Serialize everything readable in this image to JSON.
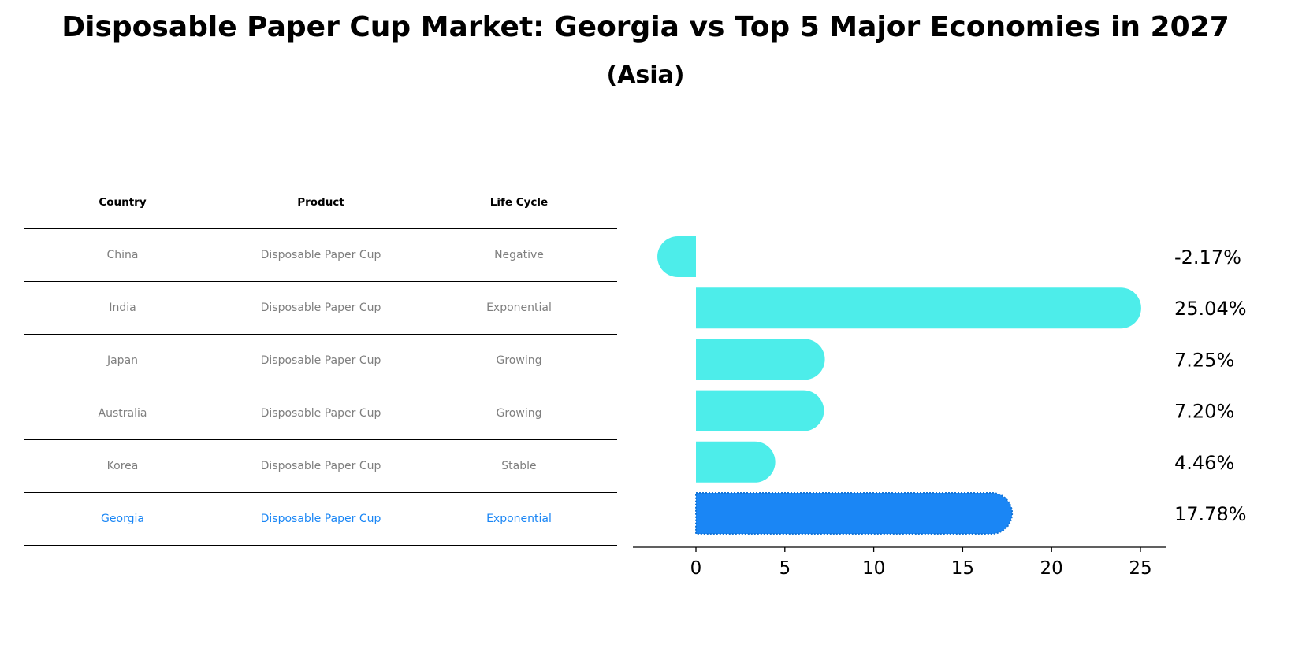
{
  "title": "Disposable Paper Cup Market: Georgia vs Top 5 Major Economies in 2027",
  "subtitle": "(Asia)",
  "table": {
    "headers": [
      "Country",
      "Product",
      "Life Cycle"
    ],
    "rows": [
      {
        "country": "China",
        "product": "Disposable Paper Cup",
        "life_cycle": "Negative"
      },
      {
        "country": "India",
        "product": "Disposable Paper Cup",
        "life_cycle": "Exponential"
      },
      {
        "country": "Japan",
        "product": "Disposable Paper Cup",
        "life_cycle": "Growing"
      },
      {
        "country": "Australia",
        "product": "Disposable Paper Cup",
        "life_cycle": "Growing"
      },
      {
        "country": "Korea",
        "product": "Disposable Paper Cup",
        "life_cycle": "Stable"
      },
      {
        "country": "Georgia",
        "product": "Disposable Paper Cup",
        "life_cycle": "Exponential"
      }
    ]
  },
  "colors": {
    "bar": "#4dedea",
    "highlight": "#1a86f5"
  },
  "chart_data": {
    "type": "bar",
    "orientation": "horizontal",
    "categories": [
      "China",
      "India",
      "Japan",
      "Australia",
      "Korea",
      "Georgia"
    ],
    "values": [
      -2.17,
      25.04,
      7.25,
      7.2,
      4.46,
      17.78
    ],
    "value_labels": [
      "-2.17%",
      "25.04%",
      "7.25%",
      "7.20%",
      "4.46%",
      "17.78%"
    ],
    "highlight": "Georgia",
    "xticks": [
      0,
      5,
      10,
      15,
      20,
      25
    ],
    "xlim": [
      -3.6,
      26.5
    ],
    "title": "Disposable Paper Cup Market: Georgia vs Top 5 Major Economies in 2027",
    "xlabel": "",
    "ylabel": ""
  }
}
